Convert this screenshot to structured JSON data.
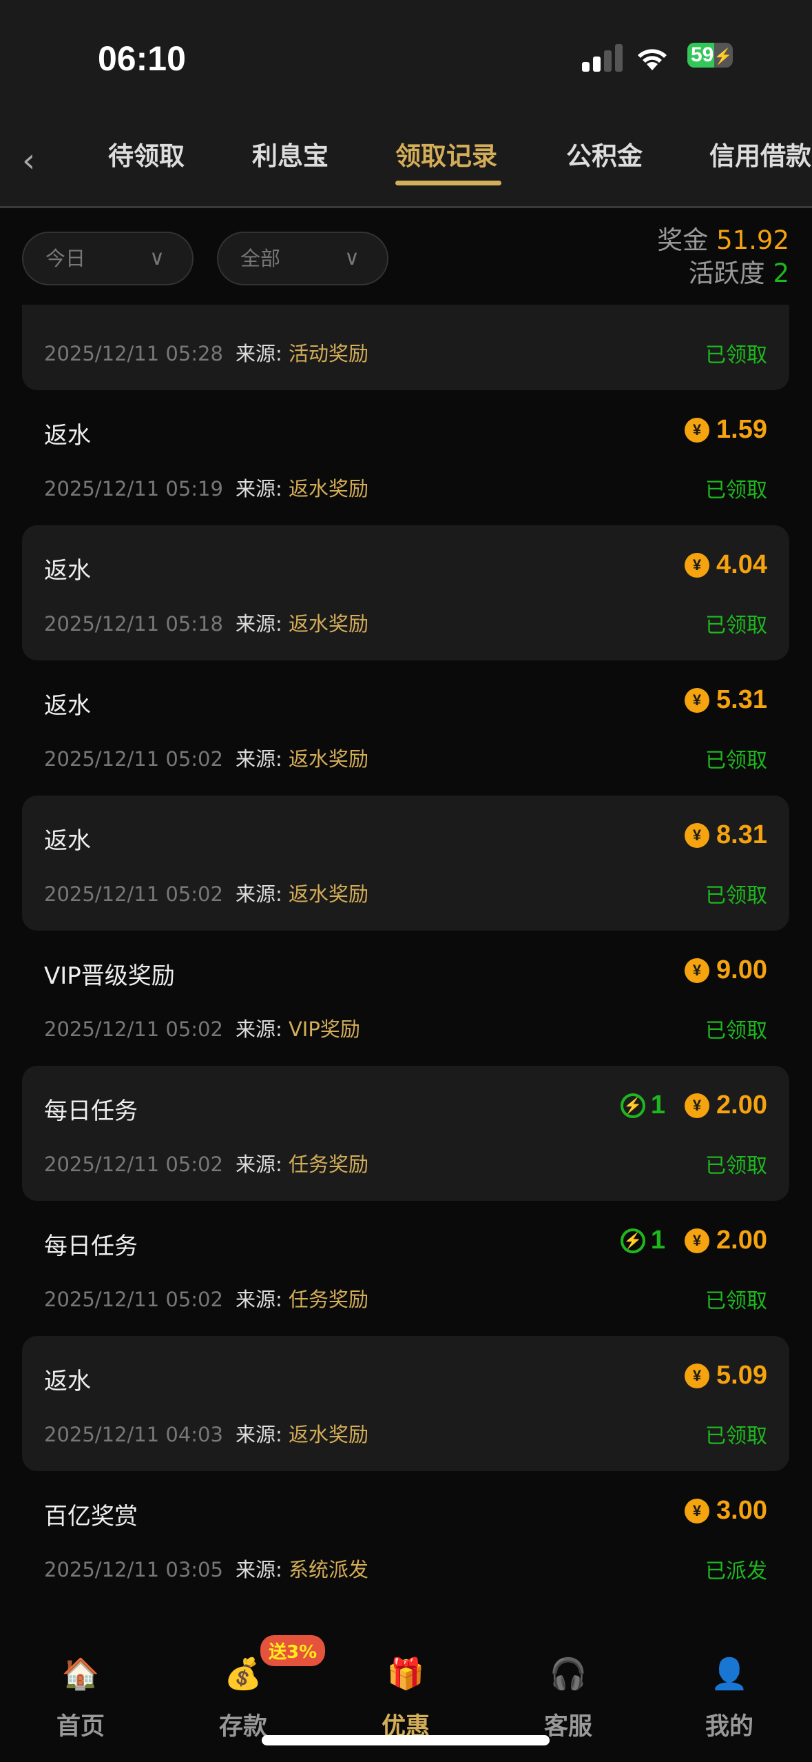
{
  "status_bar": {
    "time": "06:10",
    "battery": "59",
    "battery_level": 59
  },
  "header": {
    "tabs": [
      {
        "label": "待领取"
      },
      {
        "label": "利息宝"
      },
      {
        "label": "领取记录",
        "active": true
      },
      {
        "label": "公积金"
      },
      {
        "label": "信用借款"
      }
    ]
  },
  "filters": {
    "date": "今日",
    "type": "全部"
  },
  "summary": {
    "bonus_label": "奖金",
    "bonus": "51.92",
    "activity_label": "活跃度",
    "activity": "2"
  },
  "source_label": "来源:",
  "records": [
    {
      "title": "",
      "amount": "",
      "time": "2025/12/11 05:28",
      "source": "活动奖励",
      "status": "已领取"
    },
    {
      "title": "返水",
      "amount": "1.59",
      "time": "2025/12/11 05:19",
      "source": "返水奖励",
      "status": "已领取"
    },
    {
      "title": "返水",
      "amount": "4.04",
      "time": "2025/12/11 05:18",
      "source": "返水奖励",
      "status": "已领取"
    },
    {
      "title": "返水",
      "amount": "5.31",
      "time": "2025/12/11 05:02",
      "source": "返水奖励",
      "status": "已领取"
    },
    {
      "title": "返水",
      "amount": "8.31",
      "time": "2025/12/11 05:02",
      "source": "返水奖励",
      "status": "已领取"
    },
    {
      "title": "VIP晋级奖励",
      "amount": "9.00",
      "time": "2025/12/11 05:02",
      "source": "VIP奖励",
      "status": "已领取"
    },
    {
      "title": "每日任务",
      "activity": "1",
      "amount": "2.00",
      "time": "2025/12/11 05:02",
      "source": "任务奖励",
      "status": "已领取"
    },
    {
      "title": "每日任务",
      "activity": "1",
      "amount": "2.00",
      "time": "2025/12/11 05:02",
      "source": "任务奖励",
      "status": "已领取"
    },
    {
      "title": "返水",
      "amount": "5.09",
      "time": "2025/12/11 04:03",
      "source": "返水奖励",
      "status": "已领取"
    },
    {
      "title": "百亿奖赏",
      "amount": "3.00",
      "time": "2025/12/11 03:05",
      "source": "系统派发",
      "status": "已派发"
    }
  ],
  "nav": {
    "items": [
      {
        "label": "首页",
        "icon": "house-icon"
      },
      {
        "label": "存款",
        "icon": "money-bag-icon"
      },
      {
        "label": "优惠",
        "icon": "gift-icon",
        "active": true
      },
      {
        "label": "客服",
        "icon": "headset-icon"
      },
      {
        "label": "我的",
        "icon": "user-icon"
      }
    ],
    "deposit_badge": "送3%"
  },
  "colors": {
    "accent": "#d3ad58",
    "amount": "#f5a30f",
    "success": "#1db81d",
    "card": "#1b1b1b",
    "background": "#0a0a0a"
  }
}
